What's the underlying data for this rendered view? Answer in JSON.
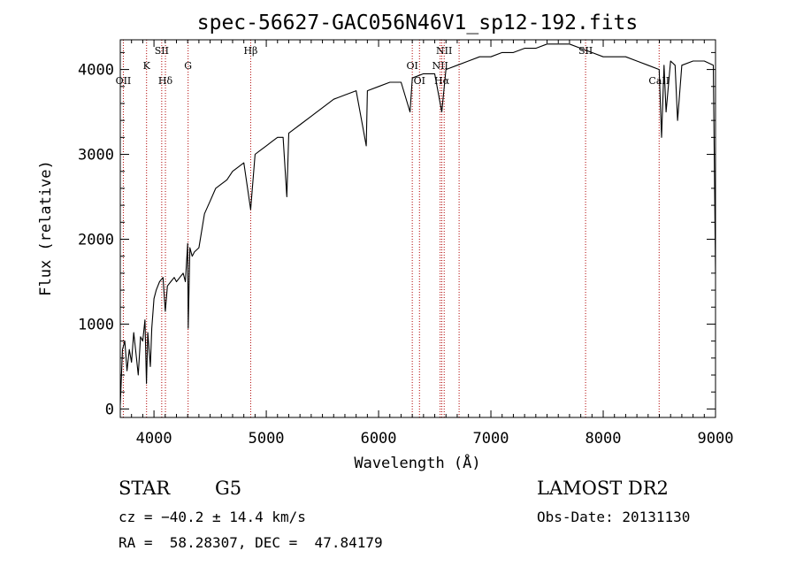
{
  "chart_data": {
    "type": "line",
    "title": "spec-56627-GAC056N46V1_sp12-192.fits",
    "xlabel": "Wavelength (Å)",
    "ylabel": "Flux (relative)",
    "xlim": [
      3700,
      9000
    ],
    "ylim": [
      -100,
      4350
    ],
    "x_ticks": [
      4000,
      5000,
      6000,
      7000,
      8000,
      9000
    ],
    "y_ticks": [
      0,
      1000,
      2000,
      3000,
      4000
    ],
    "grid": false,
    "series": [
      {
        "color": "#000000",
        "x": [
          3700,
          3720,
          3740,
          3760,
          3780,
          3800,
          3820,
          3840,
          3860,
          3880,
          3900,
          3920,
          3933,
          3945,
          3968,
          3980,
          4000,
          4020,
          4050,
          4080,
          4101,
          4120,
          4150,
          4180,
          4200,
          4230,
          4260,
          4280,
          4300,
          4305,
          4320,
          4340,
          4360,
          4400,
          4450,
          4500,
          4550,
          4600,
          4650,
          4700,
          4750,
          4800,
          4861,
          4900,
          4950,
          5000,
          5050,
          5100,
          5150,
          5183,
          5200,
          5250,
          5300,
          5400,
          5500,
          5600,
          5700,
          5800,
          5890,
          5900,
          6000,
          6100,
          6200,
          6280,
          6300,
          6400,
          6500,
          6563,
          6600,
          6700,
          6800,
          6900,
          7000,
          7100,
          7200,
          7300,
          7400,
          7500,
          7600,
          7700,
          7800,
          7900,
          8000,
          8100,
          8200,
          8300,
          8400,
          8498,
          8520,
          8542,
          8560,
          8600,
          8640,
          8662,
          8700,
          8800,
          8900,
          8980,
          9000
        ],
        "y": [
          50,
          700,
          800,
          450,
          700,
          550,
          900,
          650,
          400,
          850,
          800,
          1050,
          300,
          900,
          500,
          950,
          1300,
          1400,
          1500,
          1550,
          1150,
          1450,
          1500,
          1550,
          1500,
          1550,
          1600,
          1500,
          1950,
          950,
          1900,
          1800,
          1850,
          1900,
          2300,
          2450,
          2600,
          2650,
          2700,
          2800,
          2850,
          2900,
          2350,
          3000,
          3050,
          3100,
          3150,
          3200,
          3200,
          2500,
          3250,
          3300,
          3350,
          3450,
          3550,
          3650,
          3700,
          3750,
          3100,
          3750,
          3800,
          3850,
          3850,
          3500,
          3900,
          3950,
          3950,
          3500,
          4000,
          4050,
          4100,
          4150,
          4150,
          4200,
          4200,
          4250,
          4250,
          4300,
          4300,
          4300,
          4250,
          4200,
          4150,
          4150,
          4150,
          4100,
          4050,
          4000,
          3200,
          4050,
          3500,
          4100,
          4050,
          3400,
          4050,
          4100,
          4100,
          4050,
          1600
        ]
      }
    ],
    "spectral_lines": [
      {
        "label": "OII",
        "x": 3727,
        "row": "low"
      },
      {
        "label": "K",
        "x": 3934,
        "row": "mid"
      },
      {
        "label": "SII",
        "x": 4069,
        "row": "high"
      },
      {
        "label": "Hδ",
        "x": 4102,
        "row": "low"
      },
      {
        "label": "G",
        "x": 4304,
        "row": "mid"
      },
      {
        "label": "Hβ",
        "x": 4861,
        "row": "high"
      },
      {
        "label": "OI",
        "x": 6300,
        "row": "mid"
      },
      {
        "label": "OI",
        "x": 6364,
        "row": "low"
      },
      {
        "label": "NII",
        "x": 6548,
        "row": "mid"
      },
      {
        "label": "Hα",
        "x": 6563,
        "row": "low"
      },
      {
        "label": "NII",
        "x": 6584,
        "row": "high"
      },
      {
        "label": "SII",
        "x": 6717,
        "row": "none"
      },
      {
        "label": "SII",
        "x": 7843,
        "row": "high"
      },
      {
        "label": "CaII",
        "x": 8498,
        "row": "low"
      }
    ]
  },
  "info": {
    "object_type": "STAR",
    "subclass": "G5",
    "survey": "LAMOST DR2",
    "cz": "cz = −40.2 ± 14.4 km/s",
    "obs_date": "Obs-Date: 20131130",
    "coords": "RA =  58.28307, DEC =  47.84179"
  }
}
